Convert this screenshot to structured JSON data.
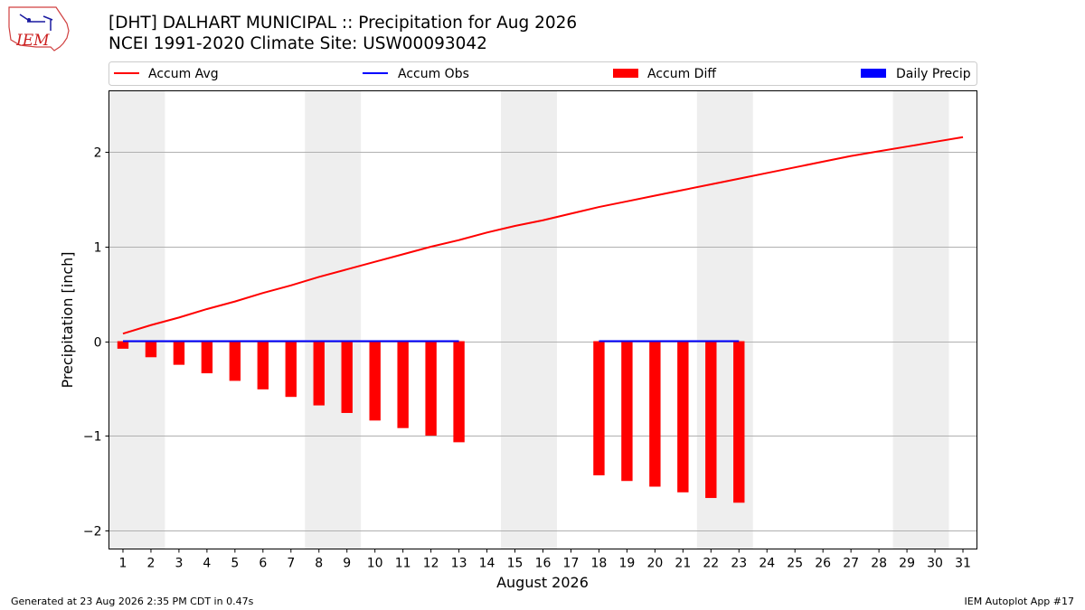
{
  "header": {
    "title_line1": "[DHT] DALHART MUNICIPAL :: Precipitation for Aug 2026",
    "title_line2": "NCEI 1991-2020 Climate Site: USW00093042",
    "logo_text": "IEM"
  },
  "footer": {
    "generated": "Generated at 23 Aug 2026 2:35 PM CDT in 0.47s",
    "app": "IEM Autoplot App #17"
  },
  "legend": {
    "items": [
      {
        "label": "Accum Avg",
        "kind": "line",
        "color": "#ff0000"
      },
      {
        "label": "Accum Obs",
        "kind": "line",
        "color": "#0000ff"
      },
      {
        "label": "Accum Diff",
        "kind": "bar",
        "color": "#ff0000"
      },
      {
        "label": "Daily Precip",
        "kind": "bar",
        "color": "#0000ff"
      }
    ]
  },
  "chart_data": {
    "type": "bar",
    "xlabel": "August 2026",
    "ylabel": "Precipitation [inch]",
    "xlim": [
      0.5,
      31.5
    ],
    "ylim": [
      -2.2,
      2.65
    ],
    "yticks": [
      -2,
      -1,
      0,
      1,
      2
    ],
    "ytick_labels": [
      "−2",
      "−1",
      "0",
      "1",
      "2"
    ],
    "days": [
      1,
      2,
      3,
      4,
      5,
      6,
      7,
      8,
      9,
      10,
      11,
      12,
      13,
      14,
      15,
      16,
      17,
      18,
      19,
      20,
      21,
      22,
      23,
      24,
      25,
      26,
      27,
      28,
      29,
      30,
      31
    ],
    "grid": true,
    "weekend_shading": [
      [
        0.5,
        2.5
      ],
      [
        7.5,
        9.5
      ],
      [
        14.5,
        16.5
      ],
      [
        21.5,
        23.5
      ],
      [
        28.5,
        30.5
      ]
    ],
    "series": [
      {
        "name": "Accum Avg",
        "type": "line",
        "color": "#ff0000",
        "x": [
          1,
          2,
          3,
          4,
          5,
          6,
          7,
          8,
          9,
          10,
          11,
          12,
          13,
          14,
          15,
          16,
          17,
          18,
          19,
          20,
          21,
          22,
          23,
          24,
          25,
          26,
          27,
          28,
          29,
          30,
          31
        ],
        "values": [
          0.08,
          0.17,
          0.25,
          0.34,
          0.42,
          0.51,
          0.59,
          0.68,
          0.76,
          0.84,
          0.92,
          1.0,
          1.07,
          1.15,
          1.22,
          1.28,
          1.35,
          1.42,
          1.48,
          1.54,
          1.6,
          1.66,
          1.72,
          1.78,
          1.84,
          1.9,
          1.96,
          2.01,
          2.06,
          2.11,
          2.16
        ]
      },
      {
        "name": "Accum Obs",
        "type": "line",
        "color": "#0000ff",
        "segments": [
          {
            "x": [
              1,
              2,
              3,
              4,
              5,
              6,
              7,
              8,
              9,
              10,
              11,
              12,
              13
            ],
            "values": [
              0,
              0,
              0,
              0,
              0,
              0,
              0,
              0,
              0,
              0,
              0,
              0,
              0
            ]
          },
          {
            "x": [
              18,
              19,
              20,
              21,
              22,
              23
            ],
            "values": [
              0,
              0,
              0,
              0,
              0,
              0
            ]
          }
        ]
      },
      {
        "name": "Accum Diff",
        "type": "bar",
        "color": "#ff0000",
        "x": [
          1,
          2,
          3,
          4,
          5,
          6,
          7,
          8,
          9,
          10,
          11,
          12,
          13,
          18,
          19,
          20,
          21,
          22,
          23
        ],
        "values": [
          -0.08,
          -0.17,
          -0.25,
          -0.34,
          -0.42,
          -0.51,
          -0.59,
          -0.68,
          -0.76,
          -0.84,
          -0.92,
          -1.0,
          -1.07,
          -1.42,
          -1.48,
          -1.54,
          -1.6,
          -1.66,
          -1.71
        ]
      },
      {
        "name": "Daily Precip",
        "type": "bar",
        "color": "#0000ff",
        "x": [],
        "values": []
      }
    ]
  }
}
